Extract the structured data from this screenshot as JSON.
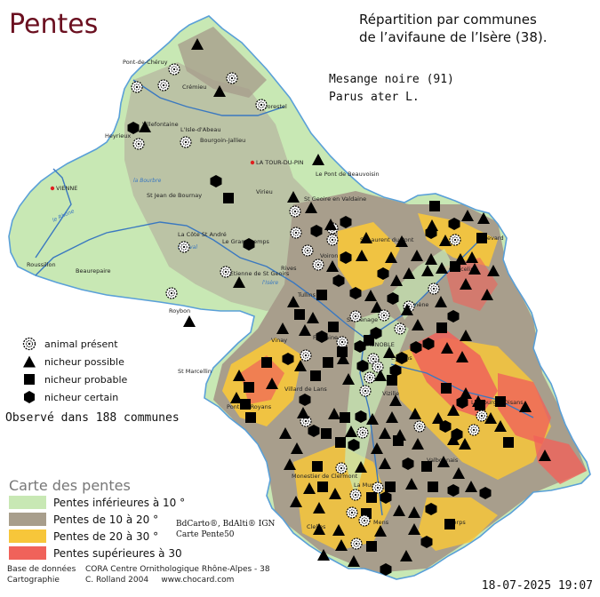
{
  "title": "Pentes",
  "heading": {
    "line1": "Répartition par communes",
    "line2": "de l’avifaune de l’Isère (38)."
  },
  "species": {
    "common": "Mesange noire  (91)",
    "latin": "Parus ater L."
  },
  "observed_text": "Observé dans 188 communes",
  "legend_status": [
    {
      "label": "animal présent",
      "icon": "circle-dotted-icon"
    },
    {
      "label": "nicheur possible",
      "icon": "triangle-icon"
    },
    {
      "label": "nicheur probable",
      "icon": "square-icon"
    },
    {
      "label": "nicheur certain",
      "icon": "hexagon-icon"
    }
  ],
  "slope_legend": {
    "title": "Carte des pentes",
    "items": [
      {
        "label": "Pentes inférieures à 10 °",
        "color": "#c8e8b4"
      },
      {
        "label": "Pentes de 10 à 20 °",
        "color": "#a89e8c"
      },
      {
        "label": "Pentes de 20 à 30 °",
        "color": "#f7c63a"
      },
      {
        "label": "Pentes supérieures à 30",
        "color": "#f0625a"
      }
    ]
  },
  "credits": {
    "line1": "BdCarto®, BdAlti® IGN",
    "line2": "Carte Pente50"
  },
  "footer": {
    "db_label": "Base de données",
    "db_value": "CORA Centre Ornithologique Rhône-Alpes - 38",
    "carto_label": "Cartographie",
    "carto_value": "C. Rolland 2004",
    "site": "www.chocard.com"
  },
  "date": "18-07-2025 19:07",
  "places": [
    {
      "name": "Pont-de-Chéruy"
    },
    {
      "name": "Crémieu"
    },
    {
      "name": "Morestel"
    },
    {
      "name": "Villefontaine"
    },
    {
      "name": "Heyrieux"
    },
    {
      "name": "L'Isle-d'Abeau"
    },
    {
      "name": "Bourgoin-Jallieu"
    },
    {
      "name": "LA TOUR-DU-PIN"
    },
    {
      "name": "Le Pont de Beauvoisin"
    },
    {
      "name": "VIENNE"
    },
    {
      "name": "St Jean de Bournay"
    },
    {
      "name": "Virieu"
    },
    {
      "name": "St Geoire en Valdaine"
    },
    {
      "name": "La Côte St André"
    },
    {
      "name": "Le Grand Lemps"
    },
    {
      "name": "St Laurent du Pont"
    },
    {
      "name": "Allevard"
    },
    {
      "name": "Roussillon"
    },
    {
      "name": "Beaurepaire"
    },
    {
      "name": "St Etienne de St Geoirs"
    },
    {
      "name": "Rives"
    },
    {
      "name": "Tullins"
    },
    {
      "name": "Roybon"
    },
    {
      "name": "Voiron"
    },
    {
      "name": "Domène"
    },
    {
      "name": "Goncelin"
    },
    {
      "name": "GRENOBLE"
    },
    {
      "name": "Vinay"
    },
    {
      "name": "St Marcellin"
    },
    {
      "name": "Villard de Lans"
    },
    {
      "name": "Pont en Royans"
    },
    {
      "name": "Vizille"
    },
    {
      "name": "Le Bourg d'Oisans"
    },
    {
      "name": "Monestier de Clermont"
    },
    {
      "name": "La Mure"
    },
    {
      "name": "Corps"
    },
    {
      "name": "Clelles"
    },
    {
      "name": "Mens"
    },
    {
      "name": "Valbonnais"
    },
    {
      "name": "Fontaine"
    },
    {
      "name": "Eybens"
    },
    {
      "name": "Sassenage"
    }
  ],
  "colors": {
    "title": "#6b1020",
    "lowland": "#c8e8b4",
    "slope10_20": "#a89e8c",
    "slope20_30": "#f7c63a",
    "slope30": "#f0625a",
    "river": "#3a78c0",
    "border": "#5aa0d8"
  }
}
